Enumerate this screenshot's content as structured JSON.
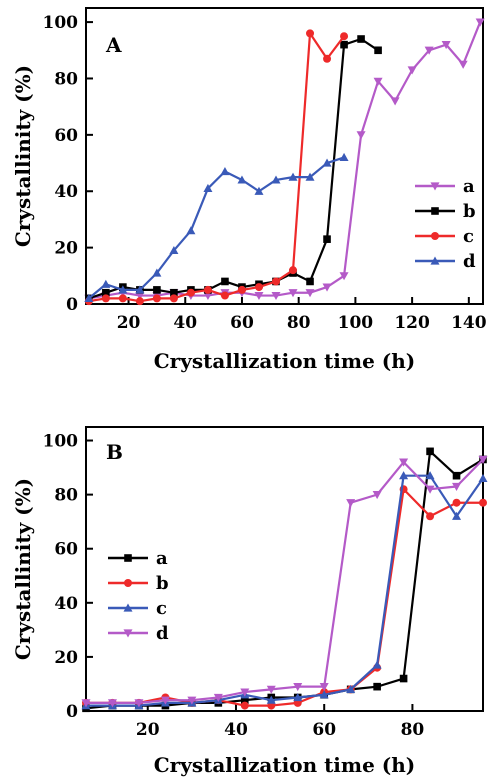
{
  "chart_data": [
    {
      "type": "line",
      "panel_label": "A",
      "xlabel": "Crystallization time (h)",
      "ylabel": "Crystallinity (%)",
      "xlim": [
        5,
        145
      ],
      "ylim": [
        0,
        105
      ],
      "xticks": [
        20,
        40,
        60,
        80,
        100,
        120,
        140
      ],
      "yticks": [
        0,
        20,
        40,
        60,
        80,
        100
      ],
      "legend_position": "right",
      "series": [
        {
          "name": "a",
          "color": "#b45ac8",
          "marker": "triangle-down",
          "x": [
            6,
            12,
            18,
            24,
            30,
            36,
            42,
            48,
            54,
            60,
            66,
            72,
            78,
            84,
            90,
            96,
            102,
            108,
            114,
            120,
            126,
            132,
            138,
            144
          ],
          "y": [
            2,
            3,
            4,
            3,
            3,
            4,
            3,
            3,
            4,
            4,
            3,
            3,
            4,
            4,
            6,
            10,
            60,
            79,
            72,
            83,
            90,
            92,
            85,
            100
          ]
        },
        {
          "name": "b",
          "color": "#000000",
          "marker": "square",
          "x": [
            6,
            12,
            18,
            24,
            30,
            36,
            42,
            48,
            54,
            60,
            66,
            72,
            78,
            84,
            90,
            96,
            102,
            108
          ],
          "y": [
            2,
            4,
            6,
            5,
            5,
            4,
            5,
            5,
            8,
            6,
            7,
            8,
            11,
            8,
            23,
            92,
            94,
            90
          ]
        },
        {
          "name": "c",
          "color": "#ee2a2a",
          "marker": "circle",
          "x": [
            6,
            12,
            18,
            24,
            30,
            36,
            42,
            48,
            54,
            60,
            66,
            72,
            78,
            84,
            90,
            96
          ],
          "y": [
            1,
            2,
            2,
            1,
            2,
            2,
            4,
            5,
            3,
            5,
            6,
            8,
            12,
            96,
            87,
            95
          ]
        },
        {
          "name": "d",
          "color": "#3a5ab8",
          "marker": "triangle-up",
          "x": [
            6,
            12,
            18,
            24,
            30,
            36,
            42,
            48,
            54,
            60,
            66,
            72,
            78,
            84,
            90,
            96
          ],
          "y": [
            2,
            7,
            5,
            5,
            11,
            19,
            26,
            41,
            47,
            44,
            40,
            44,
            45,
            45,
            50,
            52
          ]
        }
      ]
    },
    {
      "type": "line",
      "panel_label": "B",
      "xlabel": "Crystallization time (h)",
      "ylabel": "Crystallinity (%)",
      "xlim": [
        6,
        96
      ],
      "ylim": [
        0,
        105
      ],
      "xticks": [
        20,
        40,
        60,
        80
      ],
      "yticks": [
        0,
        20,
        40,
        60,
        80,
        100
      ],
      "legend_position": "left",
      "series": [
        {
          "name": "a",
          "color": "#000000",
          "marker": "square",
          "x": [
            6,
            12,
            18,
            24,
            30,
            36,
            42,
            48,
            54,
            60,
            66,
            72,
            78,
            84,
            90,
            96
          ],
          "y": [
            1,
            2,
            2,
            2,
            3,
            3,
            4,
            5,
            5,
            6,
            8,
            9,
            12,
            96,
            87,
            93
          ]
        },
        {
          "name": "b",
          "color": "#ee2a2a",
          "marker": "circle",
          "x": [
            6,
            12,
            18,
            24,
            30,
            36,
            42,
            48,
            54,
            60,
            66,
            72,
            78,
            84,
            90,
            96
          ],
          "y": [
            3,
            3,
            3,
            5,
            3,
            4,
            2,
            2,
            3,
            7,
            8,
            16,
            82,
            72,
            77,
            77
          ]
        },
        {
          "name": "c",
          "color": "#3a5ab8",
          "marker": "triangle-up",
          "x": [
            6,
            12,
            18,
            24,
            30,
            36,
            42,
            48,
            54,
            60,
            66,
            72,
            78,
            84,
            90,
            96
          ],
          "y": [
            2,
            2,
            2,
            3,
            3,
            4,
            6,
            4,
            5,
            6,
            8,
            17,
            87,
            87,
            72,
            86
          ]
        },
        {
          "name": "d",
          "color": "#b45ac8",
          "marker": "triangle-down",
          "x": [
            6,
            12,
            18,
            24,
            30,
            36,
            42,
            48,
            54,
            60,
            66,
            72,
            78,
            84,
            90,
            96
          ],
          "y": [
            3,
            3,
            3,
            4,
            4,
            5,
            7,
            8,
            9,
            9,
            77,
            80,
            92,
            82,
            83,
            93
          ]
        }
      ]
    }
  ]
}
